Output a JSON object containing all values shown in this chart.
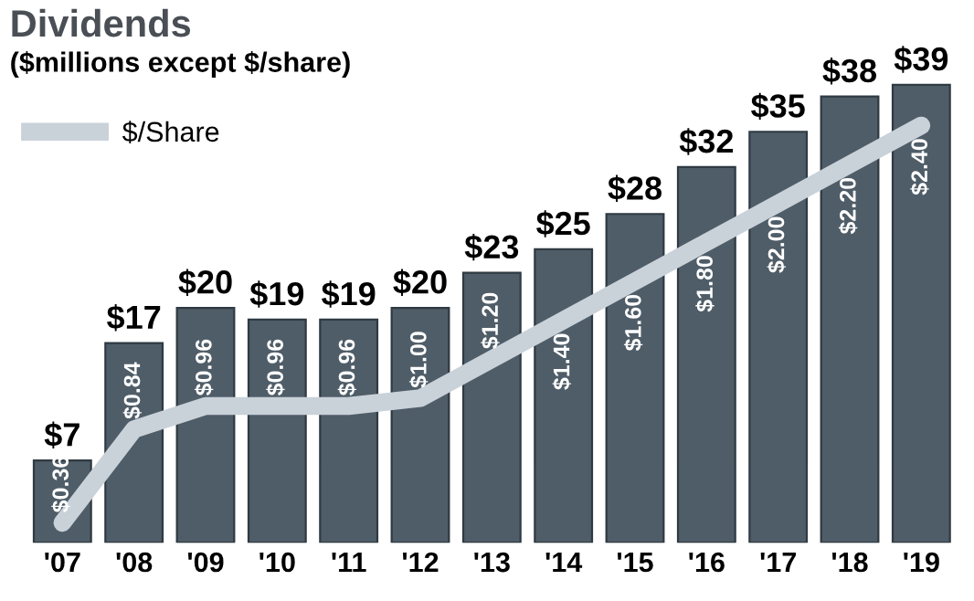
{
  "chart_data": {
    "type": "bar",
    "title": "Dividends",
    "subtitle": "($millions except $/share)",
    "categories": [
      "'07",
      "'08",
      "'09",
      "'10",
      "'11",
      "'12",
      "'13",
      "'14",
      "'15",
      "'16",
      "'17",
      "'18",
      "'19"
    ],
    "series": [
      {
        "color": "#4f5d68",
        "values": [
          7,
          17,
          20,
          19,
          19,
          20,
          23,
          25,
          28,
          32,
          35,
          38,
          39
        ],
        "value_labels": [
          "$7",
          "$17",
          "$20",
          "$19",
          "$19",
          "$20",
          "$23",
          "$25",
          "$28",
          "$32",
          "$35",
          "$38",
          "$39"
        ]
      },
      {
        "type": "line",
        "name": "$/Share",
        "axis": "y2",
        "color": "#c9d1d9",
        "values": [
          0.36,
          0.84,
          0.96,
          0.96,
          0.96,
          1.0,
          1.2,
          1.4,
          1.6,
          1.8,
          2.0,
          2.2,
          2.4
        ],
        "value_labels": [
          "$0.36",
          "$0.84",
          "$0.96",
          "$0.96",
          "$0.96",
          "$1.00",
          "$1.20",
          "$1.40",
          "$1.60",
          "$1.80",
          "$2.00",
          "$2.20",
          "$2.40"
        ]
      }
    ],
    "tick_labels": "x",
    "legend": "top left",
    "grid": false
  }
}
